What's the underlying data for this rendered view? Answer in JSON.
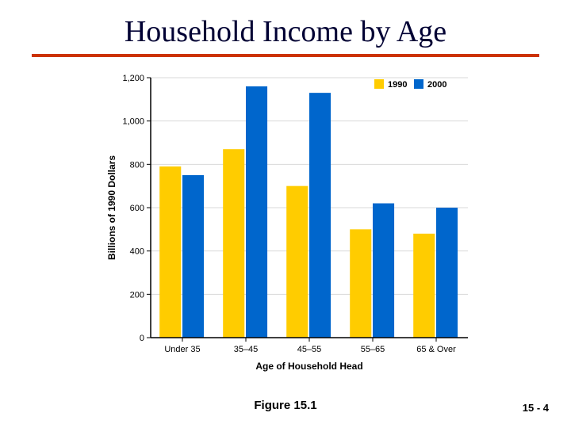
{
  "slide": {
    "title": "Household Income by Age",
    "title_color": "#000033",
    "rule_color": "#cc3300",
    "caption": "Figure 15.1",
    "pagenum": "15 - 4",
    "background_color": "#ffffff"
  },
  "chart": {
    "type": "bar",
    "ylabel": "Billions of 1990 Dollars",
    "xlabel": "Age of Household Head",
    "categories": [
      "Under 35",
      "35–45",
      "45–55",
      "55–65",
      "65 & Over"
    ],
    "series": [
      {
        "name": "1990",
        "color": "#ffcc00",
        "values": [
          790,
          870,
          700,
          500,
          480
        ]
      },
      {
        "name": "2000",
        "color": "#0066cc",
        "values": [
          750,
          1160,
          1130,
          620,
          600
        ]
      }
    ],
    "ylim": [
      0,
      1200
    ],
    "ytick_step": 200,
    "grid_color": "#d9d9d9",
    "axis_color": "#000000",
    "plot_bg": "#ffffff",
    "label_fontsize": 12,
    "tick_fontsize": 11,
    "bar_group_width": 0.72,
    "legend": {
      "position": "top-right-inside",
      "items": [
        "1990",
        "2000"
      ]
    }
  }
}
